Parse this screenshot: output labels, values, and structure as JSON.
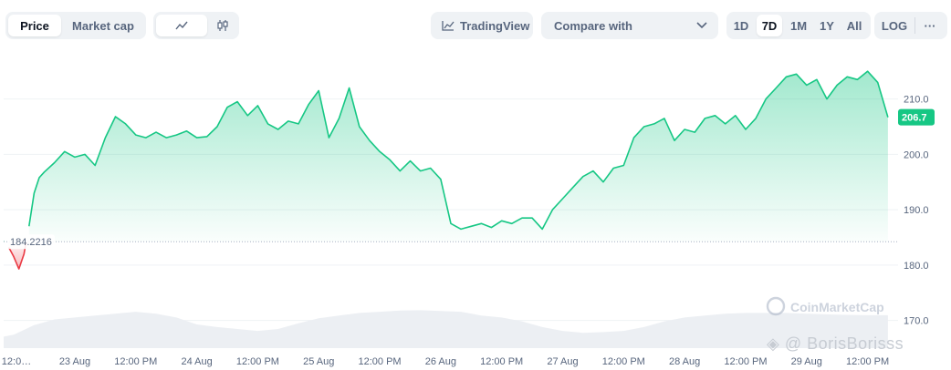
{
  "toolbar": {
    "price_tab": "Price",
    "market_cap_tab": "Market cap",
    "tradingview_label": "TradingView",
    "compare_label": "Compare with",
    "ranges": [
      "1D",
      "7D",
      "1M",
      "1Y",
      "All"
    ],
    "active_range": "7D",
    "log_label": "LOG",
    "more_label": "···",
    "icons": {
      "line_chart": "line-chart-icon",
      "candlestick": "candlestick-icon",
      "tradingview": "tradingview-chart-icon",
      "compare_dropdown": "chevron-down-icon",
      "more": "ellipsis-icon"
    }
  },
  "watermark": {
    "brand": "CoinMarketCap",
    "overlay_text": "@ BorisBorisss"
  },
  "chart_data": {
    "type": "area",
    "title": "",
    "xlabel": "",
    "ylabel": "",
    "ylim": [
      165,
      218
    ],
    "y_ticks": [
      170.0,
      180.0,
      190.0,
      200.0,
      210.0
    ],
    "y_tick_labels": [
      "170.0",
      "180.0",
      "190.0",
      "200.0",
      "210.0"
    ],
    "x_tick_labels": [
      "12:0…",
      "23 Aug",
      "12:00 PM",
      "24 Aug",
      "12:00 PM",
      "25 Aug",
      "12:00 PM",
      "26 Aug",
      "12:00 PM",
      "27 Aug",
      "12:00 PM",
      "28 Aug",
      "12:00 PM",
      "29 Aug",
      "12:00 PM"
    ],
    "x_tick_hours": [
      0,
      12,
      24,
      36,
      48,
      60,
      72,
      84,
      96,
      108,
      120,
      132,
      144,
      156,
      168
    ],
    "x_range_hours": [
      -2,
      174
    ],
    "x_unit": "hours",
    "baseline_value": 184.2216,
    "baseline_label": "184.2216",
    "current_value": 206.7,
    "current_label": "206.7",
    "grid": true,
    "legend": "none",
    "series": [
      {
        "values_x_hours": [
          -2,
          -1,
          0,
          1,
          2,
          3,
          4,
          5,
          6,
          8,
          10,
          12,
          14,
          16,
          18,
          20,
          22,
          24,
          26,
          28,
          30,
          32,
          34,
          36,
          38,
          40,
          42,
          44,
          46,
          48,
          50,
          52,
          54,
          56,
          58,
          60,
          62,
          64,
          66,
          68,
          70,
          72,
          74,
          76,
          78,
          80,
          82,
          84,
          86,
          88,
          90,
          92,
          94,
          96,
          98,
          100,
          102,
          104,
          106,
          108,
          110,
          112,
          114,
          116,
          118,
          120,
          122,
          124,
          126,
          128,
          130,
          132,
          134,
          136,
          138,
          140,
          142,
          144,
          146,
          148,
          150,
          152,
          154,
          156,
          158,
          160,
          162,
          164,
          166,
          168,
          170,
          172
        ],
        "values": [
          184.3,
          183.2,
          181.5,
          179.3,
          182.0,
          187.0,
          193.0,
          195.8,
          196.8,
          198.5,
          200.5,
          199.5,
          200.0,
          198.0,
          203.0,
          206.8,
          205.5,
          203.5,
          203.0,
          204.0,
          203.0,
          203.5,
          204.2,
          203.0,
          203.2,
          205.0,
          208.5,
          209.5,
          207.0,
          208.8,
          205.5,
          204.5,
          206.0,
          205.5,
          209.0,
          211.5,
          203.0,
          206.5,
          212.0,
          205.0,
          202.5,
          200.5,
          199.0,
          197.0,
          198.8,
          197.0,
          197.5,
          195.5,
          187.5,
          186.5,
          187.0,
          187.5,
          186.8,
          188.0,
          187.5,
          188.5,
          188.5,
          186.5,
          190.0,
          192.0,
          194.0,
          196.0,
          197.0,
          195.0,
          197.5,
          198.0,
          203.0,
          205.0,
          205.5,
          206.5,
          202.5,
          204.5,
          204.0,
          206.5,
          207.0,
          205.5,
          207.0,
          204.5,
          206.5,
          210.0,
          212.0,
          214.0,
          214.5,
          212.5,
          213.5,
          210.0,
          212.5,
          214.0,
          213.5,
          215.0,
          213.0,
          206.7
        ]
      }
    ],
    "volume": {
      "x_hours": [
        -2,
        0,
        4,
        8,
        12,
        16,
        20,
        24,
        28,
        32,
        36,
        40,
        44,
        48,
        52,
        56,
        60,
        64,
        68,
        72,
        76,
        80,
        84,
        88,
        92,
        96,
        100,
        104,
        108,
        112,
        116,
        120,
        124,
        128,
        132,
        136,
        140,
        144,
        148,
        152,
        156,
        160,
        164,
        168,
        172
      ],
      "values": [
        0.3,
        0.35,
        0.6,
        0.75,
        0.8,
        0.85,
        0.9,
        0.95,
        0.9,
        0.8,
        0.62,
        0.55,
        0.5,
        0.45,
        0.5,
        0.65,
        0.78,
        0.85,
        0.92,
        0.95,
        0.98,
        0.99,
        0.97,
        0.95,
        0.85,
        0.8,
        0.7,
        0.55,
        0.45,
        0.4,
        0.42,
        0.45,
        0.55,
        0.7,
        0.8,
        0.85,
        0.9,
        0.92,
        0.92,
        0.92,
        0.9,
        0.88,
        0.87,
        0.86,
        0.86
      ]
    },
    "colors": {
      "up_line": "#16c784",
      "down_line": "#ea3943",
      "volume": "#eceff3",
      "grid": "#eff2f5",
      "price_tag": "#16c784"
    }
  }
}
